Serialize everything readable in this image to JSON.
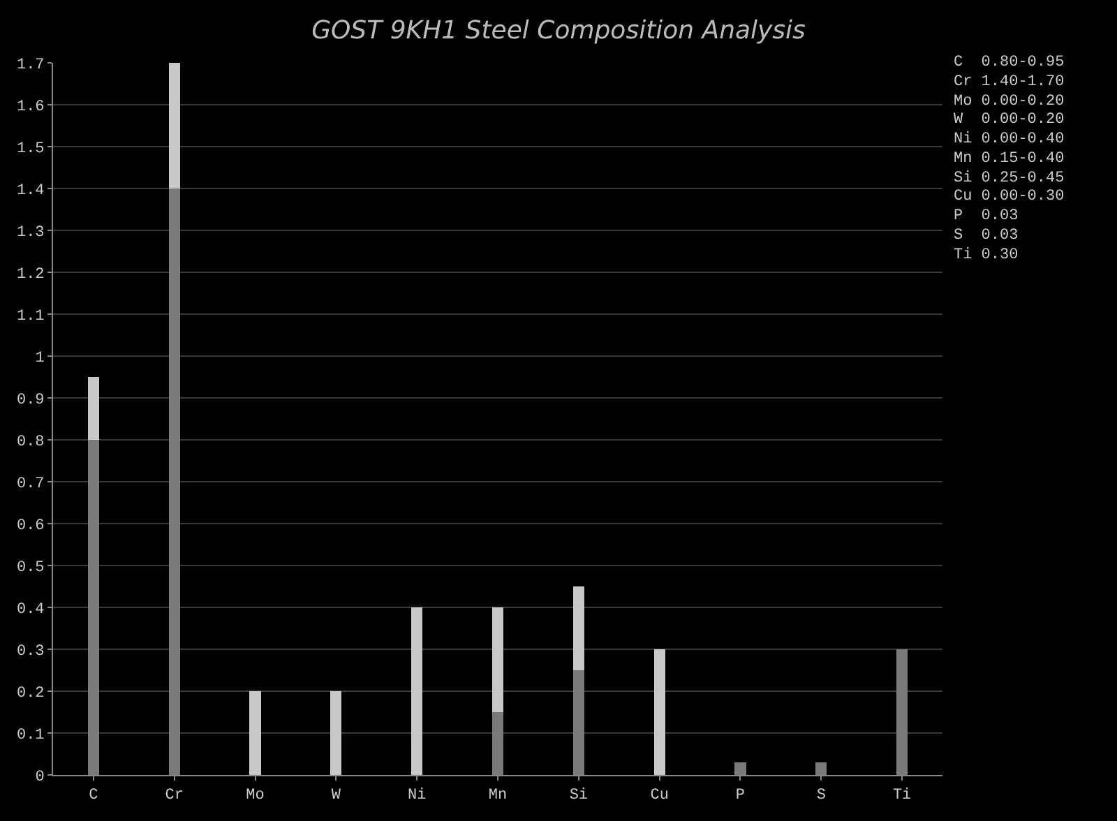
{
  "chart_data": {
    "type": "bar",
    "title": "GOST 9KH1 Steel Composition Analysis",
    "stacked": true,
    "categories": [
      "C",
      "Cr",
      "Mo",
      "W",
      "Ni",
      "Mn",
      "Si",
      "Cu",
      "P",
      "S",
      "Ti"
    ],
    "series": [
      {
        "color": "#7a7a7a",
        "values": [
          0.8,
          1.4,
          0,
          0,
          0,
          0.15,
          0.25,
          0,
          0.03,
          0.03,
          0.3
        ]
      },
      {
        "color": "#c8c8c8",
        "values": [
          0.15,
          0.3,
          0.2,
          0.2,
          0.4,
          0.25,
          0.2,
          0.3,
          0,
          0,
          0
        ]
      }
    ],
    "ylim": [
      0,
      1.7
    ],
    "yticks": [
      0,
      0.1,
      0.2,
      0.3,
      0.4,
      0.5,
      0.6,
      0.7,
      0.8,
      0.9,
      1,
      1.1,
      1.2,
      1.3,
      1.4,
      1.5,
      1.6,
      1.7
    ],
    "grid": "y",
    "annotations": [
      "C  0.80-0.95",
      "Cr 1.40-1.70",
      "Mo 0.00-0.20",
      "W  0.00-0.20",
      "Ni 0.00-0.40",
      "Mn 0.15-0.40",
      "Si 0.25-0.45",
      "Cu 0.00-0.30",
      "P  0.03",
      "S  0.03",
      "Ti 0.30"
    ]
  }
}
